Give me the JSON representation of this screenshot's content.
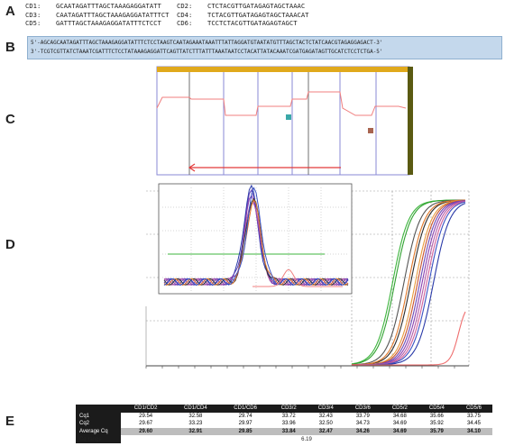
{
  "panel_labels": {
    "a": "A",
    "b": "B",
    "c": "C",
    "d": "D",
    "e": "E"
  },
  "primers": [
    [
      {
        "name": "CD1:",
        "seq": "GCAATAGATTTAGCTAAAGAGGATATT"
      },
      {
        "name": "CD2:",
        "seq": "CTCTACGTTGATAGAGTAGCTAAAC"
      }
    ],
    [
      {
        "name": "CD3:",
        "seq": "CAATAGATTTAGCTAAAGAGGATATTTCT"
      },
      {
        "name": "CD4:",
        "seq": "TCTACGTTGATAGAGTAGCTAAACAT"
      }
    ],
    [
      {
        "name": "CD5:",
        "seq": "GATTTAGCTAAAGAGGATATTTCTCCT"
      },
      {
        "name": "CD6:",
        "seq": "TCCTCTACGTTGATAGAGTAGCT"
      }
    ]
  ],
  "sequence": {
    "top": "5'-AGCAGCAATAGATTTAGCTAAAGAGGATATTTCTCCTAAGTCAATAGAAATAAATTTATTAGGATGTAATATGTTTAGCTACTCTATCAACGTAGAGGAGACT-3'",
    "bottom": "3'-TCGTCGTTATCTAAATCGATTTCTCCTATAAAGAGGATTCAGTTATCTTTATTTAAATAATCCTACATTATACAAATCGATGAGATAGTTGCATCTCCTCTGA-5'"
  },
  "colors": {
    "panel_b_bg": "#c4d8ec",
    "panel_c_top_bar": "#e0a91c",
    "panel_c_right_bar": "#5a5a12",
    "arrow_red": "#e23a3a",
    "trace_pink": "#f07f7f",
    "teal_marker": "#3aa8a8",
    "brown_marker": "#a86450"
  },
  "amplification_curves": [
    {
      "color": "#3cb43c",
      "midpoint": 0.36,
      "kind": "sigmoid"
    },
    {
      "color": "#2fa12f",
      "midpoint": 0.38,
      "kind": "sigmoid"
    },
    {
      "color": "#555555",
      "midpoint": 0.46,
      "kind": "sigmoid"
    },
    {
      "color": "#2b2b2b",
      "midpoint": 0.52,
      "kind": "sigmoid"
    },
    {
      "color": "#e0782a",
      "midpoint": 0.5,
      "kind": "sigmoid"
    },
    {
      "color": "#e89a3c",
      "midpoint": 0.56,
      "kind": "sigmoid"
    },
    {
      "color": "#c7522f",
      "midpoint": 0.58,
      "kind": "sigmoid"
    },
    {
      "color": "#6a4bb8",
      "midpoint": 0.6,
      "kind": "sigmoid"
    },
    {
      "color": "#8a3fb0",
      "midpoint": 0.62,
      "kind": "sigmoid"
    },
    {
      "color": "#b35ca8",
      "midpoint": 0.64,
      "kind": "sigmoid"
    },
    {
      "color": "#d2609a",
      "midpoint": 0.66,
      "kind": "sigmoid"
    },
    {
      "color": "#3a52c4",
      "midpoint": 0.68,
      "kind": "sigmoid"
    },
    {
      "color": "#2a3aa8",
      "midpoint": 0.72,
      "kind": "sigmoid"
    },
    {
      "color": "#ef6e6e",
      "midpoint": 0.94,
      "kind": "late"
    }
  ],
  "melt_curves": [
    {
      "color": "#2a3aa8",
      "peak": 1.0
    },
    {
      "color": "#5b3fb5",
      "peak": 0.95
    },
    {
      "color": "#8a3fb0",
      "peak": 0.92
    },
    {
      "color": "#b35ca8",
      "peak": 0.88
    },
    {
      "color": "#333333",
      "peak": 0.9
    },
    {
      "color": "#e0782a",
      "peak": 0.85
    },
    {
      "color": "#3a52c4",
      "peak": 0.97
    }
  ],
  "cq_table": {
    "columns": [
      "CD1/CD2",
      "CD1/CD4",
      "CD1/CD6",
      "CD3/2",
      "CD3/4",
      "CD3/6",
      "CD5/2",
      "CD5/4",
      "CD5/6"
    ],
    "rows": [
      {
        "label": "Cq1",
        "values": [
          "29.54",
          "32.58",
          "29.74",
          "33.72",
          "32.43",
          "33.79",
          "34.68",
          "35.66",
          "33.75"
        ]
      },
      {
        "label": "Cq2",
        "values": [
          "29.67",
          "33.23",
          "29.97",
          "33.96",
          "32.50",
          "34.73",
          "34.69",
          "35.92",
          "34.45"
        ]
      },
      {
        "label": "Average Cq",
        "values": [
          "29.60",
          "32.91",
          "29.85",
          "33.84",
          "32.47",
          "34.26",
          "34.69",
          "35.79",
          "34.10"
        ]
      }
    ],
    "range_label": "Cq range",
    "range_value": "6.19"
  }
}
